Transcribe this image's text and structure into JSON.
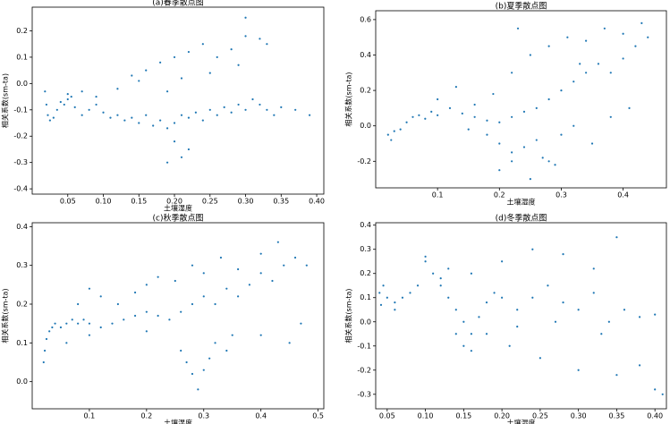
{
  "chart_data": [
    {
      "type": "scatter",
      "title": "(a)春季散点图",
      "x_label": "土壤湿度",
      "y_label": "相关系数(sm-ta)",
      "color": "#1f77b4",
      "xlim": [
        0,
        0.41
      ],
      "ylim": [
        -0.42,
        0.29
      ],
      "xticks": [
        {
          "value": 0.05,
          "label": "0.05"
        },
        {
          "value": 0.1,
          "label": "0.10"
        },
        {
          "value": 0.15,
          "label": "0.15"
        },
        {
          "value": 0.2,
          "label": "0.20"
        },
        {
          "value": 0.25,
          "label": "0.25"
        },
        {
          "value": 0.3,
          "label": "0.30"
        },
        {
          "value": 0.35,
          "label": "0.35"
        },
        {
          "value": 0.4,
          "label": "0.40"
        }
      ],
      "yticks": [
        -0.4,
        -0.3,
        -0.2,
        -0.1,
        {
          "value": 0,
          "label": "0.0"
        },
        0.1,
        0.2
      ],
      "x": [
        0.018,
        0.02,
        0.022,
        0.025,
        0.03,
        0.035,
        0.04,
        0.045,
        0.05,
        0.055,
        0.06,
        0.07,
        0.08,
        0.09,
        0.1,
        0.11,
        0.12,
        0.13,
        0.14,
        0.15,
        0.16,
        0.17,
        0.18,
        0.19,
        0.2,
        0.21,
        0.22,
        0.23,
        0.24,
        0.25,
        0.26,
        0.27,
        0.28,
        0.29,
        0.3,
        0.31,
        0.32,
        0.33,
        0.34,
        0.35,
        0.37,
        0.39,
        0.12,
        0.14,
        0.16,
        0.18,
        0.2,
        0.22,
        0.24,
        0.26,
        0.28,
        0.3,
        0.32,
        0.15,
        0.19,
        0.21,
        0.25,
        0.29,
        0.2,
        0.21,
        0.22,
        0.19,
        0.05,
        0.07,
        0.09,
        0.3,
        0.33
      ],
      "y": [
        -0.03,
        -0.08,
        -0.12,
        -0.14,
        -0.13,
        -0.1,
        -0.07,
        -0.08,
        -0.06,
        -0.05,
        -0.09,
        -0.12,
        -0.1,
        -0.08,
        -0.11,
        -0.13,
        -0.12,
        -0.14,
        -0.13,
        -0.15,
        -0.12,
        -0.16,
        -0.14,
        -0.17,
        -0.15,
        -0.12,
        -0.13,
        -0.11,
        -0.14,
        -0.1,
        -0.12,
        -0.09,
        -0.11,
        -0.08,
        -0.1,
        -0.06,
        -0.08,
        -0.1,
        -0.12,
        -0.09,
        -0.1,
        -0.12,
        -0.02,
        0.03,
        0.05,
        0.08,
        0.1,
        0.12,
        0.15,
        0.1,
        0.13,
        0.18,
        0.17,
        0.01,
        -0.03,
        0.02,
        0.04,
        0.07,
        -0.22,
        -0.28,
        -0.25,
        -0.3,
        -0.04,
        -0.03,
        -0.05,
        0.25,
        0.15
      ]
    },
    {
      "type": "scatter",
      "title": "(b)夏季散点图",
      "x_label": "土壤湿度",
      "y_label": "相关系数(sm-ta)",
      "color": "#1f77b4",
      "xlim": [
        0,
        0.47
      ],
      "ylim": [
        -0.35,
        0.65
      ],
      "xticks": [
        0.1,
        0.2,
        0.3,
        0.4
      ],
      "yticks": [
        -0.2,
        {
          "value": 0,
          "label": "0.0"
        },
        0.2,
        0.4,
        0.6
      ],
      "x": [
        0.02,
        0.025,
        0.03,
        0.04,
        0.05,
        0.06,
        0.07,
        0.08,
        0.09,
        0.1,
        0.12,
        0.14,
        0.16,
        0.18,
        0.2,
        0.22,
        0.24,
        0.26,
        0.28,
        0.3,
        0.32,
        0.34,
        0.36,
        0.38,
        0.4,
        0.42,
        0.44,
        0.1,
        0.13,
        0.16,
        0.19,
        0.22,
        0.25,
        0.28,
        0.31,
        0.34,
        0.37,
        0.4,
        0.43,
        0.15,
        0.18,
        0.2,
        0.22,
        0.24,
        0.26,
        0.28,
        0.3,
        0.32,
        0.35,
        0.38,
        0.41,
        0.2,
        0.22,
        0.25,
        0.27,
        0.29,
        0.23,
        0.33
      ],
      "y": [
        -0.05,
        -0.08,
        -0.03,
        -0.02,
        0.02,
        0.05,
        0.06,
        0.04,
        0.08,
        0.06,
        0.1,
        0.07,
        0.05,
        0.03,
        0.02,
        0.05,
        0.08,
        0.1,
        0.15,
        0.2,
        0.25,
        0.3,
        0.35,
        0.3,
        0.38,
        0.45,
        0.5,
        0.15,
        0.22,
        0.12,
        0.18,
        0.3,
        0.4,
        0.45,
        0.5,
        0.48,
        0.55,
        0.52,
        0.58,
        -0.02,
        -0.05,
        -0.1,
        -0.15,
        -0.12,
        -0.08,
        -0.2,
        -0.05,
        0,
        -0.1,
        0.05,
        0.1,
        -0.25,
        -0.2,
        -0.3,
        -0.18,
        -0.22,
        0.55,
        0.35
      ]
    },
    {
      "type": "scatter",
      "title": "(c)秋季散点图",
      "x_label": "土壤湿度",
      "y_label": "相关系数(sm-ta)",
      "color": "#1f77b4",
      "xlim": [
        0,
        0.51
      ],
      "ylim": [
        -0.07,
        0.41
      ],
      "xticks": [
        0.1,
        0.2,
        0.3,
        0.4,
        0.5
      ],
      "yticks": [
        {
          "value": 0,
          "label": "0.0"
        },
        0.1,
        0.2,
        0.3,
        0.4
      ],
      "x": [
        0.02,
        0.022,
        0.025,
        0.03,
        0.035,
        0.04,
        0.05,
        0.06,
        0.07,
        0.08,
        0.09,
        0.1,
        0.12,
        0.14,
        0.16,
        0.18,
        0.2,
        0.22,
        0.24,
        0.26,
        0.28,
        0.3,
        0.32,
        0.34,
        0.36,
        0.38,
        0.4,
        0.42,
        0.44,
        0.46,
        0.48,
        0.08,
        0.1,
        0.12,
        0.15,
        0.18,
        0.2,
        0.22,
        0.25,
        0.28,
        0.3,
        0.33,
        0.36,
        0.4,
        0.43,
        0.26,
        0.27,
        0.28,
        0.29,
        0.3,
        0.31,
        0.32,
        0.34,
        0.4,
        0.45,
        0.06,
        0.1,
        0.2,
        0.35,
        0.47
      ],
      "y": [
        0.05,
        0.08,
        0.11,
        0.13,
        0.14,
        0.15,
        0.14,
        0.15,
        0.16,
        0.15,
        0.16,
        0.15,
        0.14,
        0.15,
        0.16,
        0.17,
        0.18,
        0.17,
        0.16,
        0.18,
        0.2,
        0.22,
        0.2,
        0.24,
        0.22,
        0.25,
        0.28,
        0.26,
        0.3,
        0.32,
        0.3,
        0.2,
        0.24,
        0.22,
        0.2,
        0.23,
        0.25,
        0.27,
        0.26,
        0.3,
        0.28,
        0.32,
        0.29,
        0.33,
        0.36,
        0.08,
        0.05,
        0.02,
        -0.02,
        0.03,
        0.06,
        0.1,
        0.08,
        0.12,
        0.1,
        0.1,
        0.12,
        0.13,
        0.12,
        0.15
      ]
    },
    {
      "type": "scatter",
      "title": "(d)冬季散点图",
      "x_label": "土壤湿度",
      "y_label": "相关系数(sm-ta)",
      "color": "#1f77b4",
      "xlim": [
        0.035,
        0.415
      ],
      "ylim": [
        -0.36,
        0.41
      ],
      "xticks": [
        {
          "value": 0.05,
          "label": "0.05"
        },
        {
          "value": 0.1,
          "label": "0.10"
        },
        {
          "value": 0.15,
          "label": "0.15"
        },
        {
          "value": 0.2,
          "label": "0.20"
        },
        {
          "value": 0.25,
          "label": "0.25"
        },
        {
          "value": 0.3,
          "label": "0.30"
        },
        {
          "value": 0.35,
          "label": "0.35"
        },
        {
          "value": 0.4,
          "label": "0.40"
        }
      ],
      "yticks": [
        -0.3,
        -0.2,
        -0.1,
        {
          "value": 0,
          "label": "0.0"
        },
        0.1,
        0.2,
        0.3,
        0.4
      ],
      "x": [
        0.04,
        0.042,
        0.045,
        0.05,
        0.06,
        0.07,
        0.08,
        0.09,
        0.1,
        0.11,
        0.12,
        0.13,
        0.14,
        0.15,
        0.16,
        0.17,
        0.18,
        0.19,
        0.2,
        0.22,
        0.24,
        0.26,
        0.28,
        0.3,
        0.32,
        0.34,
        0.36,
        0.38,
        0.4,
        0.1,
        0.13,
        0.16,
        0.2,
        0.24,
        0.28,
        0.32,
        0.35,
        0.14,
        0.15,
        0.16,
        0.18,
        0.21,
        0.25,
        0.3,
        0.35,
        0.38,
        0.4,
        0.41,
        0.06,
        0.12,
        0.22,
        0.27,
        0.33
      ],
      "y": [
        0.12,
        0.07,
        0.15,
        0.1,
        0.08,
        0.1,
        0.12,
        0.15,
        0.27,
        0.2,
        0.15,
        0.1,
        0.05,
        0,
        -0.05,
        0.02,
        0.08,
        0.12,
        0.1,
        0.05,
        0.1,
        0.15,
        0.08,
        0.05,
        0.12,
        0,
        0.05,
        0.02,
        0.03,
        0.25,
        0.22,
        0.2,
        0.25,
        0.3,
        0.28,
        0.22,
        0.35,
        -0.05,
        -0.1,
        -0.12,
        -0.05,
        -0.1,
        -0.15,
        -0.2,
        -0.22,
        -0.18,
        -0.28,
        -0.3,
        0.05,
        0.18,
        -0.02,
        0,
        -0.05
      ]
    }
  ]
}
